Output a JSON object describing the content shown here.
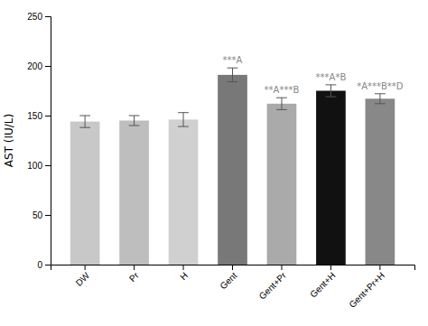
{
  "chart_data": {
    "type": "bar",
    "categories": [
      "DW",
      "Pr",
      "H",
      "Gent",
      "Gent+Pr",
      "Gent+H",
      "Gent+Pr+H"
    ],
    "values": [
      144,
      145,
      146,
      191,
      162,
      175,
      167
    ],
    "errors": [
      6,
      5,
      7,
      7,
      6,
      6,
      5
    ],
    "colors": [
      "#c8c8c8",
      "#bebebe",
      "#d0d0d0",
      "#787878",
      "#aaaaaa",
      "#111111",
      "#888888"
    ],
    "ylabel": "AST (IU/L)",
    "ylim": [
      0,
      250
    ],
    "yticks": [
      0,
      50,
      100,
      150,
      200,
      250
    ],
    "annotations": [
      {
        "category": "Gent",
        "text": "***A"
      },
      {
        "category": "Gent+Pr",
        "text": "**A***B"
      },
      {
        "category": "Gent+H",
        "text": "***A*B"
      },
      {
        "category": "Gent+Pr+H",
        "text": "*A***B**D"
      }
    ],
    "grid": false
  }
}
